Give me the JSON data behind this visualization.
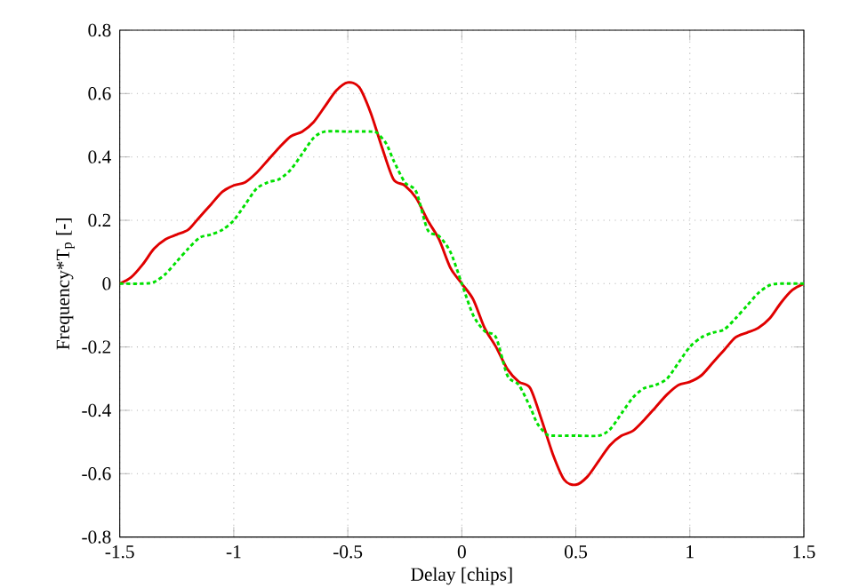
{
  "chart_data": {
    "type": "line",
    "xlabel": "Delay [chips]",
    "ylabel": "Frequency*T$_{p}$ [-]",
    "xlim": [
      -1.5,
      1.5
    ],
    "ylim": [
      -0.8,
      0.8
    ],
    "xticks": [
      -1.5,
      -1,
      -0.5,
      0,
      0.5,
      1,
      1.5
    ],
    "yticks": [
      -0.8,
      -0.6,
      -0.4,
      -0.2,
      0,
      0.2,
      0.4,
      0.6,
      0.8
    ],
    "grid": true,
    "marker": "none",
    "series": [
      {
        "color": "#e00000",
        "line_style": "solid",
        "x": [
          -1.5,
          -1.45,
          -1.4,
          -1.35,
          -1.3,
          -1.25,
          -1.2,
          -1.15,
          -1.1,
          -1.05,
          -1.0,
          -0.95,
          -0.9,
          -0.85,
          -0.8,
          -0.75,
          -0.7,
          -0.65,
          -0.6,
          -0.55,
          -0.5,
          -0.45,
          -0.4,
          -0.35,
          -0.3,
          -0.25,
          -0.2,
          -0.15,
          -0.1,
          -0.05,
          0,
          0.05,
          0.1,
          0.15,
          0.2,
          0.25,
          0.3,
          0.35,
          0.4,
          0.45,
          0.5,
          0.55,
          0.6,
          0.65,
          0.7,
          0.75,
          0.8,
          0.85,
          0.9,
          0.95,
          1.0,
          1.05,
          1.1,
          1.15,
          1.2,
          1.25,
          1.3,
          1.35,
          1.4,
          1.45,
          1.5
        ],
        "values": [
          0,
          0.02,
          0.06,
          0.11,
          0.14,
          0.155,
          0.17,
          0.21,
          0.25,
          0.29,
          0.31,
          0.32,
          0.35,
          0.39,
          0.43,
          0.465,
          0.48,
          0.51,
          0.56,
          0.61,
          0.635,
          0.62,
          0.54,
          0.43,
          0.33,
          0.31,
          0.27,
          0.2,
          0.14,
          0.05,
          0,
          -0.05,
          -0.14,
          -0.2,
          -0.27,
          -0.31,
          -0.33,
          -0.43,
          -0.54,
          -0.62,
          -0.635,
          -0.61,
          -0.56,
          -0.51,
          -0.48,
          -0.465,
          -0.43,
          -0.39,
          -0.35,
          -0.32,
          -0.31,
          -0.29,
          -0.25,
          -0.21,
          -0.17,
          -0.155,
          -0.14,
          -0.11,
          -0.06,
          -0.02,
          0
        ]
      },
      {
        "color": "#00e000",
        "line_style": "dotted",
        "x": [
          -1.5,
          -1.4,
          -1.35,
          -1.3,
          -1.25,
          -1.2,
          -1.15,
          -1.1,
          -1.05,
          -1.0,
          -0.95,
          -0.9,
          -0.85,
          -0.8,
          -0.75,
          -0.7,
          -0.65,
          -0.6,
          -0.5,
          -0.4,
          -0.37,
          -0.33,
          -0.3,
          -0.25,
          -0.2,
          -0.15,
          -0.1,
          -0.05,
          0,
          0.05,
          0.1,
          0.15,
          0.2,
          0.25,
          0.3,
          0.33,
          0.37,
          0.4,
          0.5,
          0.6,
          0.65,
          0.7,
          0.75,
          0.8,
          0.85,
          0.9,
          0.95,
          1.0,
          1.05,
          1.1,
          1.15,
          1.2,
          1.25,
          1.3,
          1.35,
          1.4,
          1.5
        ],
        "values": [
          0,
          0,
          0.005,
          0.03,
          0.07,
          0.11,
          0.145,
          0.155,
          0.17,
          0.2,
          0.25,
          0.3,
          0.32,
          0.33,
          0.36,
          0.41,
          0.46,
          0.48,
          0.48,
          0.48,
          0.475,
          0.44,
          0.39,
          0.32,
          0.29,
          0.17,
          0.15,
          0.1,
          0,
          -0.1,
          -0.15,
          -0.17,
          -0.29,
          -0.32,
          -0.39,
          -0.44,
          -0.475,
          -0.48,
          -0.48,
          -0.48,
          -0.46,
          -0.41,
          -0.36,
          -0.33,
          -0.32,
          -0.3,
          -0.25,
          -0.2,
          -0.17,
          -0.155,
          -0.145,
          -0.11,
          -0.07,
          -0.03,
          -0.005,
          0,
          0
        ]
      }
    ]
  }
}
